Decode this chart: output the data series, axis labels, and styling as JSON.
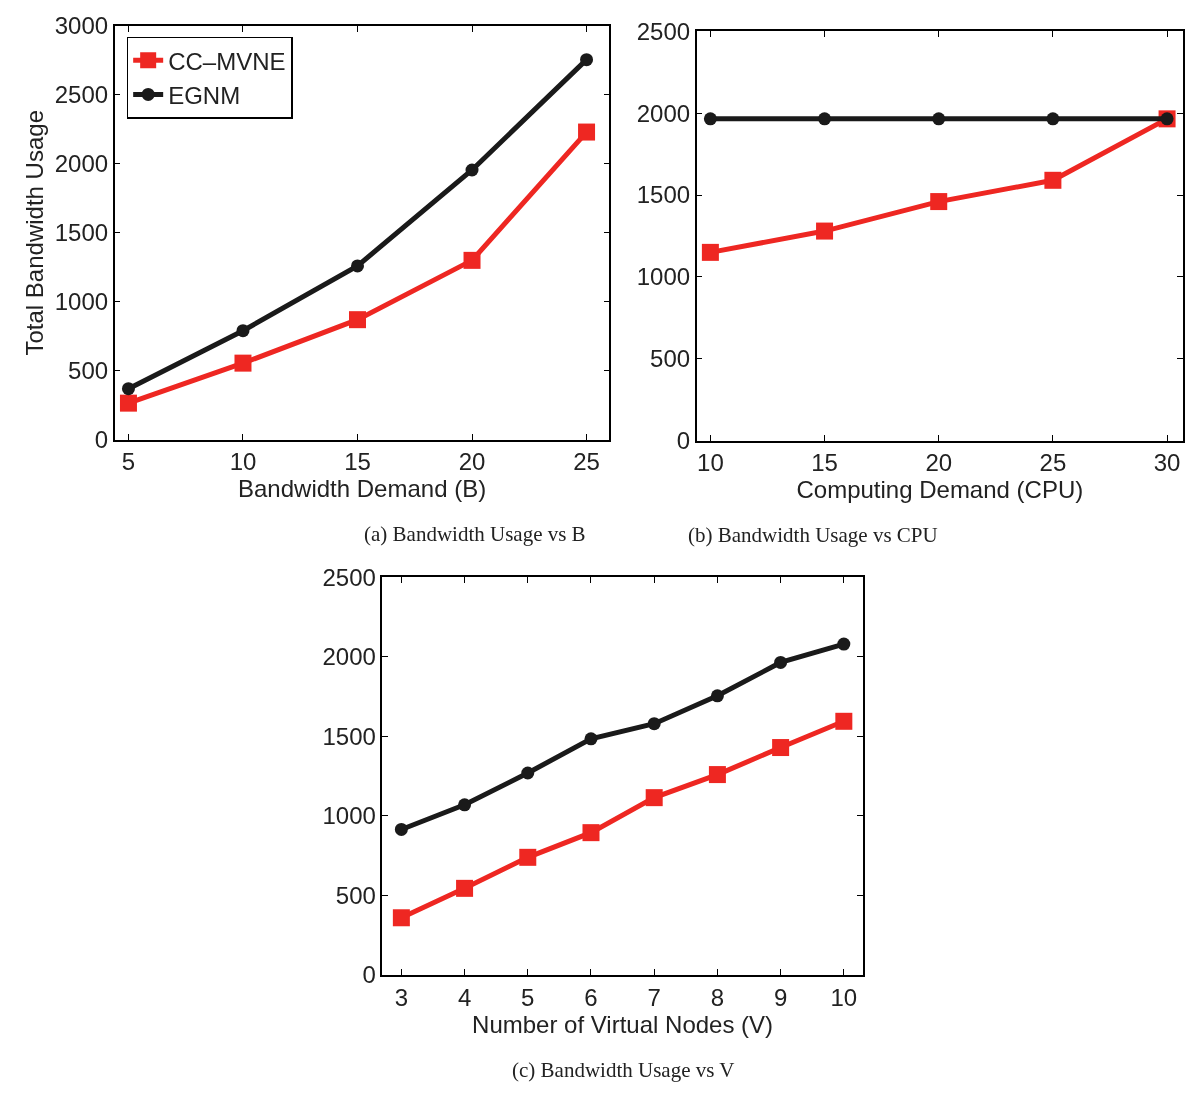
{
  "chart_data": [
    {
      "type": "line",
      "xlabel": "Bandwidth Demand (B)",
      "ylabel": "Total Bandwidth Usage",
      "x": [
        5,
        10,
        15,
        20,
        25
      ],
      "xlim": [
        4.4,
        26
      ],
      "xticks": [
        5,
        10,
        15,
        20,
        25
      ],
      "ylim": [
        0,
        3000
      ],
      "yticks": [
        0,
        500,
        1000,
        1500,
        2000,
        2500,
        3000
      ],
      "legend": "top left",
      "annotations": [
        "(a) Bandwidth Usage vs B"
      ],
      "series": [
        {
          "name": "CC–MVNE",
          "color": "#ee2722",
          "marker": "square",
          "values": [
            265,
            555,
            870,
            1300,
            2230
          ]
        },
        {
          "name": "EGNM",
          "color": "#1a1a1a",
          "marker": "circle",
          "values": [
            370,
            790,
            1260,
            1955,
            2755
          ]
        }
      ]
    },
    {
      "type": "line",
      "xlabel": "Computing Demand (CPU)",
      "x": [
        10,
        15,
        20,
        25,
        30
      ],
      "xlim": [
        9.4,
        30.7
      ],
      "xticks": [
        10,
        15,
        20,
        25,
        30
      ],
      "ylim": [
        0,
        2500
      ],
      "yticks": [
        0,
        500,
        1000,
        1500,
        2000,
        2500
      ],
      "annotations": [
        "(b) Bandwidth Usage vs CPU"
      ],
      "series": [
        {
          "color": "#ee2722",
          "marker": "square",
          "values": [
            1150,
            1280,
            1460,
            1590,
            1965
          ]
        },
        {
          "color": "#1a1a1a",
          "marker": "circle",
          "values": [
            1965,
            1965,
            1965,
            1965,
            1965
          ]
        }
      ]
    },
    {
      "type": "line",
      "xlabel": "Number of Virtual Nodes (V)",
      "x": [
        3,
        4,
        5,
        6,
        7,
        8,
        9,
        10
      ],
      "xlim": [
        2.7,
        10.3
      ],
      "xticks": [
        3,
        4,
        5,
        6,
        7,
        8,
        9,
        10
      ],
      "ylim": [
        0,
        2500
      ],
      "yticks": [
        0,
        500,
        1000,
        1500,
        2000,
        2500
      ],
      "annotations": [
        "(c) Bandwidth Usage vs V"
      ],
      "series": [
        {
          "color": "#ee2722",
          "marker": "square",
          "values": [
            360,
            545,
            740,
            895,
            1115,
            1260,
            1430,
            1595
          ]
        },
        {
          "color": "#1a1a1a",
          "marker": "circle",
          "values": [
            915,
            1070,
            1270,
            1485,
            1580,
            1755,
            1965,
            2080
          ]
        }
      ]
    }
  ]
}
